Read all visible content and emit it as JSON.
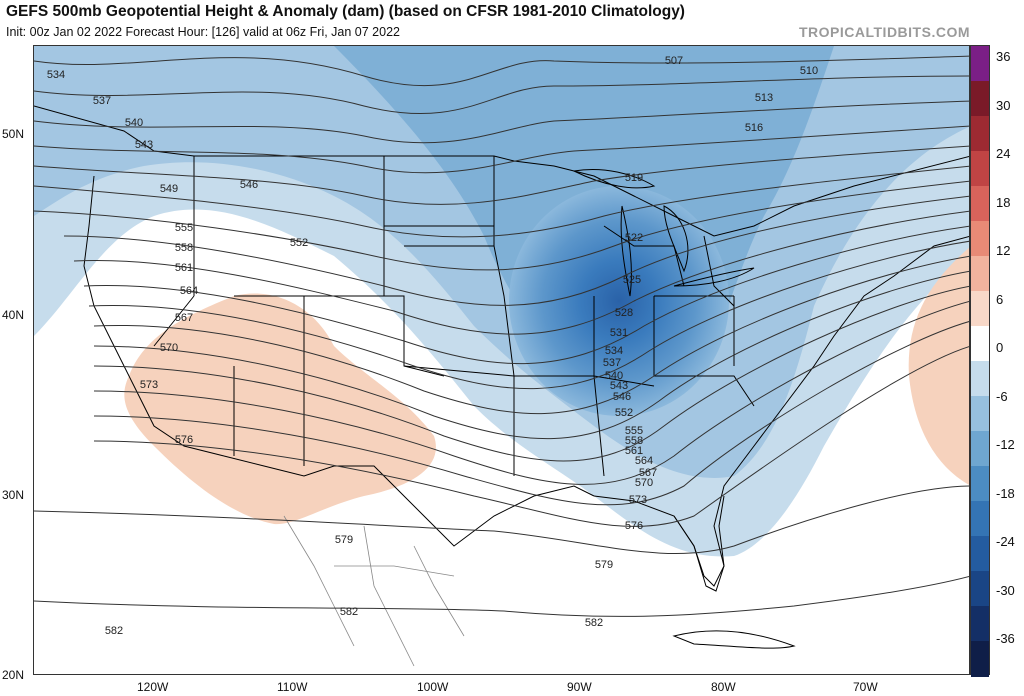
{
  "header": {
    "title": "GEFS 500mb Geopotential Height & Anomaly (dam) (based on CFSR 1981-2010 Climatology)",
    "subtitle": "Init: 00z Jan 02 2022   Forecast Hour: [126]   valid at 06z Fri, Jan 07 2022",
    "brand": "TROPICALTIDBITS.COM"
  },
  "map": {
    "lat_labels": [
      "50N",
      "40N",
      "30N",
      "20N"
    ],
    "lon_labels": [
      "120W",
      "110W",
      "100W",
      "90W",
      "80W",
      "70W"
    ],
    "contour_labels": [
      "507",
      "510",
      "513",
      "516",
      "519",
      "522",
      "525",
      "528",
      "531",
      "534",
      "537",
      "540",
      "543",
      "546",
      "549",
      "552",
      "555",
      "558",
      "561",
      "564",
      "567",
      "570",
      "573",
      "576",
      "579",
      "582"
    ],
    "colors": {
      "land_border": "#000000",
      "contour": "#333333",
      "trough_core": "#2f6eb5",
      "positive_anomaly": "#f6d2bd"
    }
  },
  "colorbar": {
    "labels": [
      "36",
      "30",
      "24",
      "18",
      "12",
      "6",
      "0",
      "-6",
      "-12",
      "-18",
      "-24",
      "-30",
      "-36"
    ],
    "colors": [
      "#7b1f86",
      "#7a1a28",
      "#9d2a32",
      "#c04444",
      "#d8635b",
      "#e88a76",
      "#f2b39e",
      "#f8d8c8",
      "#ffffff",
      "#c6dcec",
      "#97c0de",
      "#6fa6d0",
      "#4c8cc2",
      "#3474b4",
      "#245ca0",
      "#1a4585",
      "#142f66",
      "#0f1e48"
    ]
  }
}
